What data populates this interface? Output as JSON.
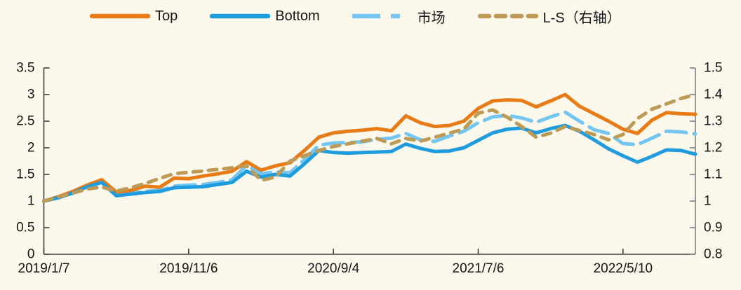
{
  "page": {
    "background": "#FCF8EC"
  },
  "chart_data": {
    "type": "line",
    "title": "",
    "xlabel": "",
    "ylabel": "",
    "n_points": 46,
    "grid": false,
    "legend_position": "top",
    "left_axis": {
      "min": 0,
      "max": 3.5,
      "ticks": [
        0,
        0.5,
        1,
        1.5,
        2,
        2.5,
        3,
        3.5
      ]
    },
    "right_axis": {
      "min": 0.8,
      "max": 1.5,
      "ticks": [
        0.8,
        0.9,
        1,
        1.1,
        1.2,
        1.3,
        1.4,
        1.5
      ]
    },
    "x_ticks": [
      {
        "index": 0,
        "label": "2019/1/7"
      },
      {
        "index": 10,
        "label": "2019/11/6"
      },
      {
        "index": 20,
        "label": "2020/9/4"
      },
      {
        "index": 30,
        "label": "2021/7/6"
      },
      {
        "index": 40,
        "label": "2022/5/10"
      }
    ],
    "series": [
      {
        "name": "Top",
        "axis": "left",
        "color": "#E87B15",
        "style": "solid",
        "values": [
          1.0,
          1.08,
          1.18,
          1.3,
          1.4,
          1.17,
          1.2,
          1.28,
          1.26,
          1.43,
          1.42,
          1.47,
          1.51,
          1.56,
          1.74,
          1.58,
          1.66,
          1.72,
          1.95,
          2.2,
          2.28,
          2.31,
          2.33,
          2.36,
          2.32,
          2.6,
          2.47,
          2.4,
          2.42,
          2.5,
          2.74,
          2.88,
          2.9,
          2.89,
          2.77,
          2.88,
          3.0,
          2.78,
          2.64,
          2.5,
          2.35,
          2.27,
          2.52,
          2.66,
          2.64,
          2.63
        ]
      },
      {
        "name": "Bottom",
        "axis": "left",
        "color": "#1F9CDE",
        "style": "solid",
        "values": [
          1.0,
          1.06,
          1.15,
          1.27,
          1.35,
          1.1,
          1.13,
          1.16,
          1.18,
          1.25,
          1.26,
          1.27,
          1.31,
          1.35,
          1.56,
          1.45,
          1.5,
          1.47,
          1.7,
          1.95,
          1.91,
          1.9,
          1.91,
          1.92,
          1.93,
          2.07,
          1.99,
          1.93,
          1.94,
          2.0,
          2.14,
          2.28,
          2.35,
          2.37,
          2.28,
          2.36,
          2.42,
          2.31,
          2.15,
          1.98,
          1.85,
          1.73,
          1.84,
          1.96,
          1.95,
          1.88
        ]
      },
      {
        "name": "市场",
        "axis": "left",
        "color": "#72C6F1",
        "style": "dashed-long",
        "values": [
          1.0,
          1.07,
          1.17,
          1.28,
          1.37,
          1.12,
          1.15,
          1.18,
          1.2,
          1.28,
          1.3,
          1.31,
          1.35,
          1.4,
          1.67,
          1.51,
          1.55,
          1.53,
          1.78,
          2.05,
          2.09,
          2.1,
          2.11,
          2.16,
          2.18,
          2.27,
          2.15,
          2.12,
          2.22,
          2.31,
          2.47,
          2.58,
          2.61,
          2.56,
          2.48,
          2.58,
          2.67,
          2.5,
          2.34,
          2.27,
          2.08,
          2.06,
          2.18,
          2.31,
          2.3,
          2.26
        ]
      },
      {
        "name": "L-S（右轴）",
        "axis": "right",
        "color": "#BD9B57",
        "style": "dashed-short",
        "values": [
          1.0,
          1.015,
          1.03,
          1.045,
          1.053,
          1.037,
          1.05,
          1.066,
          1.085,
          1.103,
          1.108,
          1.113,
          1.119,
          1.125,
          1.132,
          1.078,
          1.09,
          1.15,
          1.17,
          1.19,
          1.205,
          1.215,
          1.225,
          1.235,
          1.215,
          1.235,
          1.225,
          1.24,
          1.255,
          1.27,
          1.33,
          1.342,
          1.315,
          1.28,
          1.24,
          1.255,
          1.28,
          1.265,
          1.25,
          1.23,
          1.25,
          1.31,
          1.345,
          1.365,
          1.385,
          1.4
        ]
      }
    ]
  }
}
